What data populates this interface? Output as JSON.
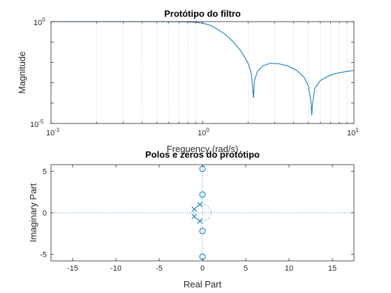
{
  "chart_data": [
    {
      "type": "line",
      "title": "Protótipo do filtro",
      "xlabel": "Frequency (rad/s)",
      "ylabel": "Magnitude",
      "xscale": "log",
      "yscale": "log",
      "xlim": [
        0.1,
        10
      ],
      "ylim": [
        1e-05,
        1
      ],
      "grid": "vertical minor dotted",
      "x_ticks": [
        {
          "base": "10",
          "exp": "-1"
        },
        {
          "base": "10",
          "exp": "0"
        },
        {
          "base": "10",
          "exp": "1"
        }
      ],
      "y_ticks": [
        {
          "base": "10",
          "exp": "0"
        },
        {
          "base": "10",
          "exp": "-5"
        }
      ],
      "series": [
        {
          "color": "#0072BD",
          "x": [
            0.1,
            0.2,
            0.5,
            0.7,
            0.8,
            0.9,
            1.0,
            1.1,
            1.2,
            1.4,
            1.6,
            1.8,
            2.0,
            2.1,
            2.17,
            2.2,
            2.3,
            2.5,
            2.8,
            3.2,
            3.7,
            4.2,
            4.7,
            5.0,
            5.2,
            5.27,
            5.3,
            5.5,
            6.0,
            7.0,
            8.0,
            9.0,
            10.0
          ],
          "y": [
            1,
            1,
            0.999,
            0.99,
            0.97,
            0.93,
            0.85,
            0.7,
            0.52,
            0.25,
            0.1,
            0.035,
            0.009,
            0.003,
            0.00018,
            0.0012,
            0.0035,
            0.0068,
            0.009,
            0.0085,
            0.0065,
            0.004,
            0.0018,
            0.0007,
            0.00012,
            2.5e-05,
            7e-05,
            0.0005,
            0.0013,
            0.0024,
            0.0031,
            0.0036,
            0.004
          ]
        }
      ]
    },
    {
      "type": "scatter",
      "title": "Polos e zeros do protótipo",
      "xlabel": "Real Part",
      "ylabel": "Imaginary Part",
      "xlim": [
        -17.5,
        17.5
      ],
      "ylim": [
        -5.8,
        5.8
      ],
      "x_ticks": [
        -15,
        -10,
        -5,
        0,
        5,
        10,
        15
      ],
      "y_ticks": [
        -5,
        0,
        5
      ],
      "color": "#0072BD",
      "unit_circle": true,
      "zeros": [
        {
          "re": 0,
          "im": 5.3
        },
        {
          "re": 0,
          "im": 2.2
        },
        {
          "re": 0,
          "im": -2.2
        },
        {
          "re": 0,
          "im": -5.3
        }
      ],
      "poles": [
        {
          "re": -0.3,
          "im": 1.0
        },
        {
          "re": -0.95,
          "im": 0.45
        },
        {
          "re": -0.95,
          "im": -0.45
        },
        {
          "re": -0.3,
          "im": -1.0
        }
      ]
    }
  ]
}
